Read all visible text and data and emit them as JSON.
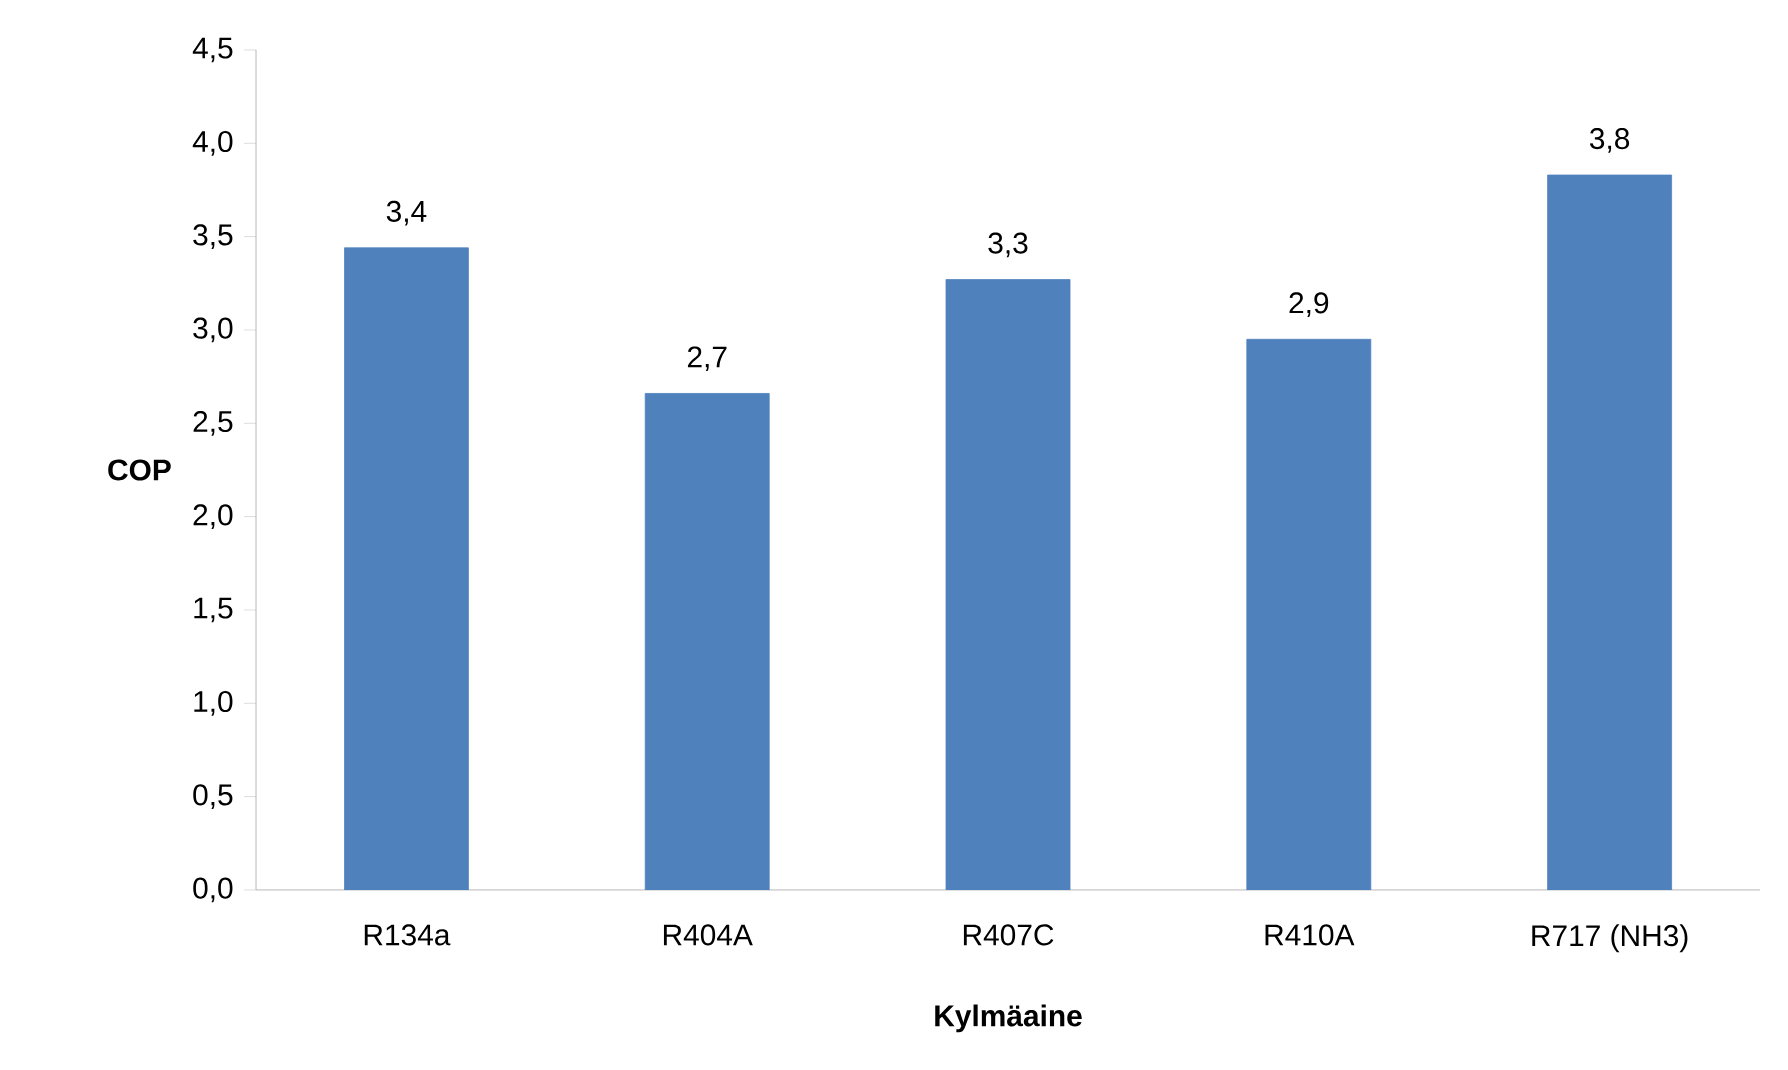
{
  "chart_data": {
    "type": "bar",
    "xlabel": "Kylmäaine",
    "ylabel": "COP",
    "categories": [
      "R134a",
      "R404A",
      "R407C",
      "R410A",
      "R717 (NH3)"
    ],
    "values": [
      3.44,
      2.66,
      3.27,
      2.95,
      3.83
    ],
    "value_labels": [
      "3,4",
      "2,7",
      "3,3",
      "2,9",
      "3,8"
    ],
    "color": "#4f81bd",
    "ylim": [
      0,
      4.5
    ],
    "yticks": [
      {
        "value": 0,
        "label": "0,0"
      },
      {
        "value": 0.5,
        "label": "0,5"
      },
      {
        "value": 1,
        "label": "1,0"
      },
      {
        "value": 1.5,
        "label": "1,5"
      },
      {
        "value": 2,
        "label": "2,0"
      },
      {
        "value": 2.5,
        "label": "2,5"
      },
      {
        "value": 3,
        "label": "3,0"
      },
      {
        "value": 3.5,
        "label": "3,5"
      },
      {
        "value": 4,
        "label": "4,0"
      },
      {
        "value": 4.5,
        "label": "4,5"
      }
    ],
    "grid": false
  }
}
